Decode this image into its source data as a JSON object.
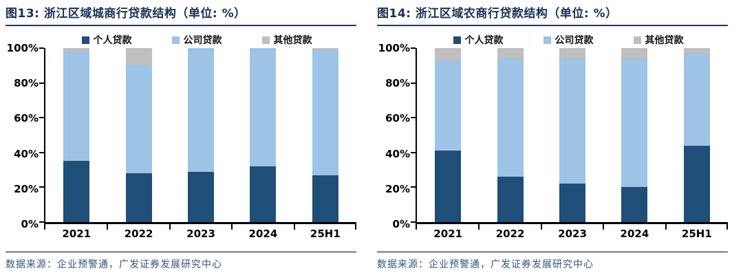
{
  "colors": {
    "title_text": "#1a3055",
    "title_rule": "#1f3864",
    "axis": "#000000",
    "source_text": "#31567e",
    "personal": "#1f4e78",
    "corporate": "#9dc3e6",
    "other": "#bfbfbf"
  },
  "chart_data": [
    {
      "type": "bar",
      "stacked": true,
      "percent_stacked": true,
      "title": "图13:  浙江区域城商行贷款结构（单位: %）",
      "categories": [
        "2021",
        "2022",
        "2023",
        "2024",
        "25H1"
      ],
      "series": [
        {
          "key": "personal",
          "name": "个人贷款",
          "color": "#1f4e78",
          "values": [
            35,
            28,
            29,
            32,
            27
          ]
        },
        {
          "key": "corporate",
          "name": "公司贷款",
          "color": "#9dc3e6",
          "values": [
            63,
            62,
            71,
            68,
            72
          ]
        },
        {
          "key": "other",
          "name": "其他贷款",
          "color": "#bfbfbf",
          "values": [
            2,
            10,
            0,
            0,
            1
          ]
        }
      ],
      "ylim": [
        0,
        100
      ],
      "y_ticks": [
        "0%",
        "20%",
        "40%",
        "60%",
        "80%",
        "100%"
      ],
      "grid": false,
      "legend_position": "top",
      "source": "数据来源：企业预警通，广发证券发展研究中心"
    },
    {
      "type": "bar",
      "stacked": true,
      "percent_stacked": true,
      "title": "图14:  浙江区域农商行贷款结构（单位: %）",
      "categories": [
        "2021",
        "2022",
        "2023",
        "2024",
        "25H1"
      ],
      "series": [
        {
          "key": "personal",
          "name": "个人贷款",
          "color": "#1f4e78",
          "values": [
            41,
            26,
            22,
            20,
            44
          ]
        },
        {
          "key": "corporate",
          "name": "公司贷款",
          "color": "#9dc3e6",
          "values": [
            52,
            68,
            72,
            74,
            53
          ]
        },
        {
          "key": "other",
          "name": "其他贷款",
          "color": "#bfbfbf",
          "values": [
            7,
            6,
            6,
            6,
            3
          ]
        }
      ],
      "ylim": [
        0,
        100
      ],
      "y_ticks": [
        "0%",
        "20%",
        "40%",
        "60%",
        "80%",
        "100%"
      ],
      "grid": false,
      "legend_position": "top",
      "source": "数据来源：企业预警通，广发证券发展研究中心"
    }
  ]
}
